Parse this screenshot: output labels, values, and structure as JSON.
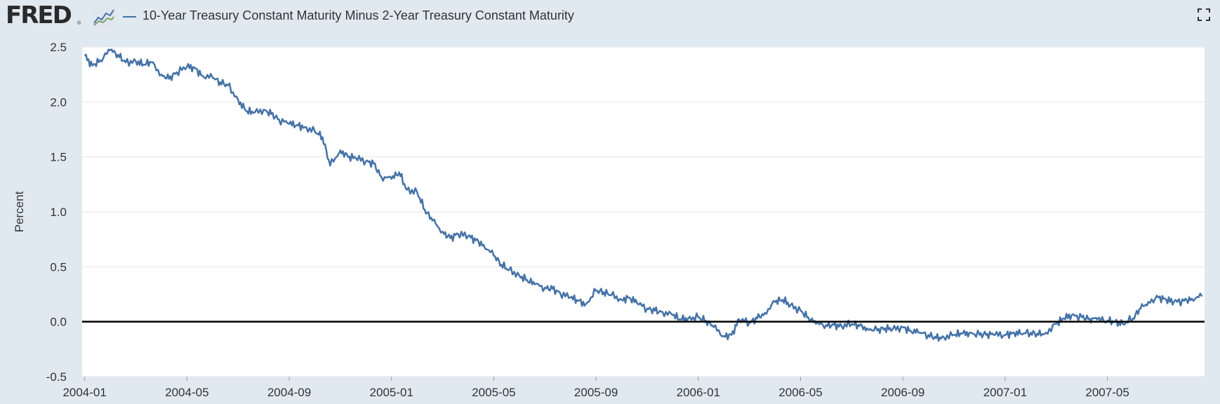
{
  "header": {
    "logo_text": "FRED",
    "logo_reg": "®",
    "series_title": "10-Year Treasury Constant Maturity Minus 2-Year Treasury Constant Maturity"
  },
  "colors": {
    "series": "#4572a7",
    "background": "#e1e9f0",
    "plot_bg": "#ffffff",
    "grid": "#e6e6e6",
    "zero_line": "#000000"
  },
  "chart_data": {
    "type": "line",
    "title": "10-Year Treasury Constant Maturity Minus 2-Year Treasury Constant Maturity",
    "xlabel": "",
    "ylabel": "Percent",
    "ylim": [
      -0.5,
      2.5
    ],
    "yticks": [
      "2.5",
      "2.0",
      "1.5",
      "1.0",
      "0.5",
      "0.0",
      "-0.5"
    ],
    "ytick_values": [
      2.5,
      2.0,
      1.5,
      1.0,
      0.5,
      0.0,
      -0.5
    ],
    "xlim_months": [
      -0.1,
      43.8
    ],
    "xticks": [
      "2004-01",
      "2004-05",
      "2004-09",
      "2005-01",
      "2005-05",
      "2005-09",
      "2006-01",
      "2006-05",
      "2006-09",
      "2007-01",
      "2007-05"
    ],
    "xtick_months": [
      0,
      4,
      8,
      12,
      16,
      20,
      24,
      28,
      32,
      36,
      40
    ],
    "grid": true,
    "series": [
      {
        "name": "10-Year Treasury Constant Maturity Minus 2-Year Treasury Constant Maturity",
        "x_months": [
          0.0,
          0.3,
          0.6,
          1.0,
          1.3,
          1.6,
          2.0,
          2.3,
          2.6,
          3.0,
          3.3,
          3.6,
          4.0,
          4.3,
          4.6,
          5.0,
          5.3,
          5.6,
          6.0,
          6.3,
          6.6,
          7.0,
          7.3,
          7.6,
          8.0,
          8.3,
          8.6,
          9.0,
          9.3,
          9.6,
          10.0,
          10.3,
          10.6,
          11.0,
          11.3,
          11.6,
          12.0,
          12.3,
          12.6,
          13.0,
          13.3,
          13.6,
          14.0,
          14.3,
          14.6,
          15.0,
          15.3,
          15.6,
          16.0,
          16.3,
          16.6,
          17.0,
          17.3,
          17.6,
          18.0,
          18.3,
          18.6,
          19.0,
          19.3,
          19.6,
          20.0,
          20.3,
          20.6,
          21.0,
          21.3,
          21.6,
          22.0,
          22.3,
          22.6,
          23.0,
          23.3,
          23.6,
          24.0,
          24.3,
          24.6,
          25.0,
          25.3,
          25.6,
          26.0,
          26.3,
          26.6,
          27.0,
          27.3,
          27.6,
          28.0,
          28.3,
          28.6,
          29.0,
          29.3,
          29.6,
          30.0,
          30.3,
          30.6,
          31.0,
          31.3,
          31.6,
          32.0,
          32.3,
          32.6,
          33.0,
          33.3,
          33.6,
          34.0,
          34.3,
          34.6,
          35.0,
          35.3,
          35.6,
          36.0,
          36.3,
          36.6,
          37.0,
          37.3,
          37.6,
          38.0,
          38.3,
          38.6,
          39.0,
          39.3,
          39.6,
          40.0,
          40.3,
          40.6,
          41.0,
          41.3,
          41.6,
          42.0,
          42.3,
          42.6,
          43.0,
          43.3,
          43.7
        ],
        "values": [
          2.42,
          2.33,
          2.38,
          2.47,
          2.43,
          2.36,
          2.37,
          2.34,
          2.36,
          2.25,
          2.21,
          2.27,
          2.32,
          2.31,
          2.24,
          2.22,
          2.18,
          2.15,
          2.02,
          1.92,
          1.9,
          1.93,
          1.89,
          1.84,
          1.8,
          1.79,
          1.77,
          1.73,
          1.68,
          1.42,
          1.56,
          1.5,
          1.49,
          1.46,
          1.44,
          1.32,
          1.3,
          1.36,
          1.2,
          1.18,
          1.02,
          0.92,
          0.82,
          0.76,
          0.8,
          0.78,
          0.74,
          0.7,
          0.6,
          0.52,
          0.47,
          0.42,
          0.38,
          0.34,
          0.31,
          0.3,
          0.26,
          0.22,
          0.19,
          0.16,
          0.28,
          0.27,
          0.24,
          0.2,
          0.22,
          0.17,
          0.12,
          0.1,
          0.09,
          0.06,
          0.02,
          0.03,
          0.04,
          0.01,
          -0.05,
          -0.13,
          -0.12,
          0.02,
          -0.01,
          0.03,
          0.08,
          0.18,
          0.2,
          0.15,
          0.1,
          0.04,
          -0.02,
          -0.03,
          -0.03,
          -0.04,
          -0.02,
          -0.04,
          -0.06,
          -0.08,
          -0.06,
          -0.07,
          -0.05,
          -0.08,
          -0.1,
          -0.12,
          -0.15,
          -0.14,
          -0.12,
          -0.11,
          -0.1,
          -0.12,
          -0.11,
          -0.12,
          -0.12,
          -0.1,
          -0.11,
          -0.1,
          -0.12,
          -0.1,
          -0.02,
          0.03,
          0.06,
          0.04,
          0.03,
          0.02,
          0.01,
          0.0,
          -0.02,
          0.03,
          0.12,
          0.18,
          0.22,
          0.2,
          0.18,
          0.19,
          0.21,
          0.23
        ]
      }
    ]
  }
}
